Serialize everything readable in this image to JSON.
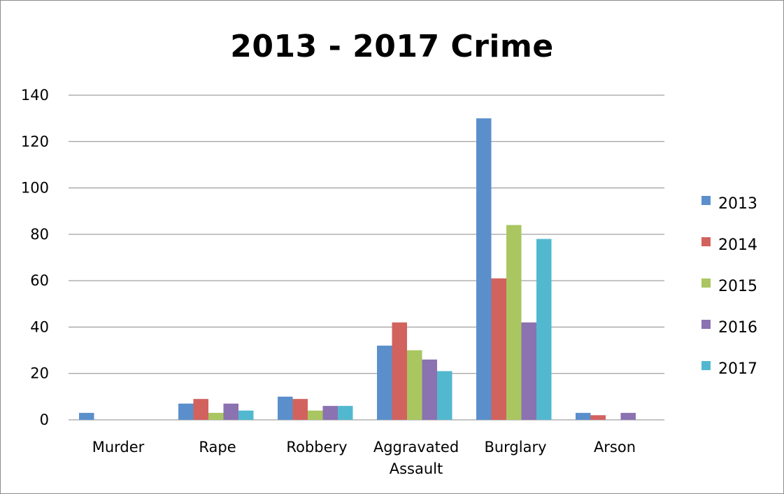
{
  "chart_data": {
    "type": "bar",
    "title": "2013 - 2017 Crime",
    "categories": [
      [
        "Murder"
      ],
      [
        "Rape"
      ],
      [
        "Robbery"
      ],
      [
        "Aggravated",
        "Assault"
      ],
      [
        "Burglary"
      ],
      [
        "Arson"
      ]
    ],
    "series": [
      {
        "name": "2013",
        "color": "#5b8fcc",
        "values": [
          3,
          7,
          10,
          32,
          130,
          3
        ]
      },
      {
        "name": "2014",
        "color": "#d2625e",
        "values": [
          0,
          9,
          9,
          42,
          61,
          2
        ]
      },
      {
        "name": "2015",
        "color": "#a9c661",
        "values": [
          0,
          3,
          4,
          30,
          84,
          0
        ]
      },
      {
        "name": "2016",
        "color": "#8b72b0",
        "values": [
          0,
          7,
          6,
          26,
          42,
          3
        ]
      },
      {
        "name": "2017",
        "color": "#52b8cf",
        "values": [
          0,
          4,
          6,
          21,
          78,
          0
        ]
      }
    ],
    "ylim": [
      0,
      140
    ],
    "yticks": [
      0,
      20,
      40,
      60,
      80,
      100,
      120,
      140
    ],
    "grid": true,
    "legend": "right"
  }
}
